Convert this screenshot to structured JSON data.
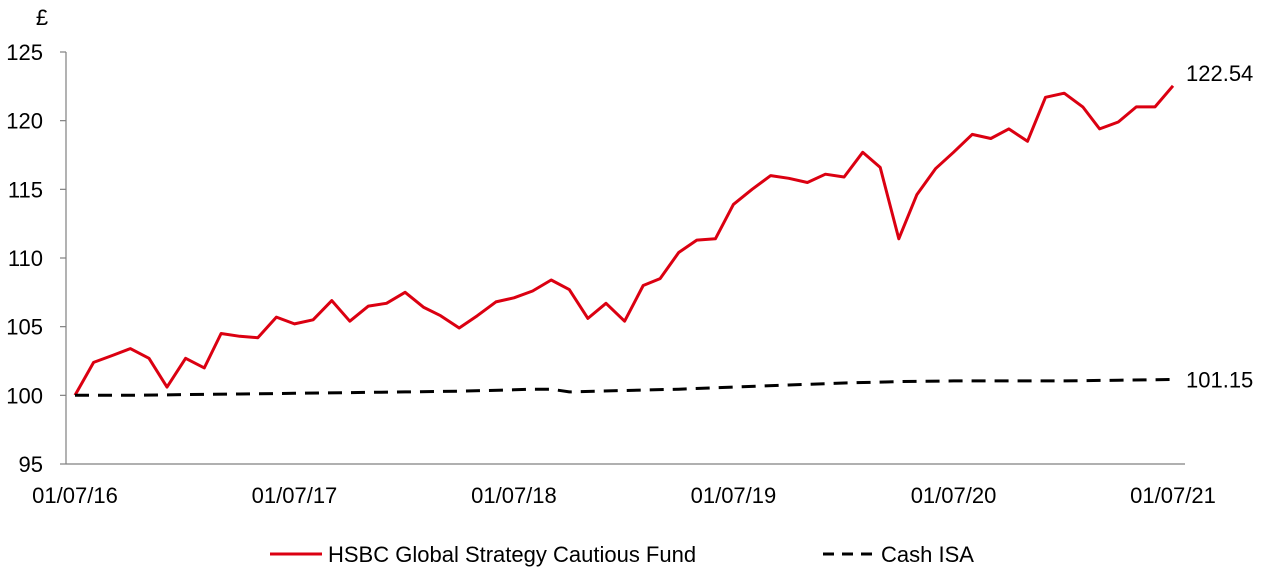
{
  "chart_data": {
    "type": "line",
    "title": "",
    "xlabel": "",
    "ylabel": "£",
    "ylim": [
      95,
      125
    ],
    "yticks": [
      95,
      100,
      105,
      110,
      115,
      120,
      125
    ],
    "xlim": [
      "01/07/16",
      "01/07/21"
    ],
    "xticks": [
      "01/07/16",
      "01/07/17",
      "01/07/18",
      "01/07/19",
      "01/07/20",
      "01/07/21"
    ],
    "grid": false,
    "legend_position": "bottom",
    "series": [
      {
        "name": "HSBC Global Strategy Cautious Fund",
        "color": "#db0011",
        "style": "solid",
        "end_label": "122.54",
        "x": [
          "01/07/16",
          "01/08/16",
          "01/09/16",
          "01/10/16",
          "01/11/16",
          "01/12/16",
          "01/01/17",
          "01/02/17",
          "01/03/17",
          "01/04/17",
          "01/05/17",
          "01/06/17",
          "01/07/17",
          "01/08/17",
          "01/09/17",
          "01/10/17",
          "01/11/17",
          "01/12/17",
          "01/01/18",
          "01/02/18",
          "01/03/18",
          "01/04/18",
          "01/05/18",
          "01/06/18",
          "01/07/18",
          "01/08/18",
          "01/09/18",
          "01/10/18",
          "01/11/18",
          "01/12/18",
          "01/01/19",
          "01/02/19",
          "01/03/19",
          "01/04/19",
          "01/05/19",
          "01/06/19",
          "01/07/19",
          "01/08/19",
          "01/09/19",
          "01/10/19",
          "01/11/19",
          "01/12/19",
          "01/01/20",
          "01/02/20",
          "01/03/20",
          "01/04/20",
          "01/05/20",
          "01/06/20",
          "01/07/20",
          "01/08/20",
          "01/09/20",
          "01/10/20",
          "01/11/20",
          "01/12/20",
          "01/01/21",
          "01/02/21",
          "01/03/21",
          "01/04/21",
          "01/05/21",
          "01/06/21",
          "01/07/21"
        ],
        "values": [
          100.0,
          102.4,
          102.9,
          103.4,
          102.7,
          100.6,
          102.7,
          102.0,
          104.5,
          104.3,
          104.2,
          105.7,
          105.2,
          105.5,
          106.9,
          105.4,
          106.5,
          106.7,
          107.5,
          106.4,
          105.8,
          104.9,
          105.8,
          106.8,
          107.1,
          107.6,
          108.4,
          107.7,
          105.6,
          106.7,
          105.4,
          108.0,
          108.5,
          110.4,
          111.3,
          111.4,
          113.9,
          115.0,
          116.0,
          115.8,
          115.5,
          116.1,
          115.9,
          117.7,
          116.6,
          111.4,
          114.6,
          116.5,
          117.7,
          119.0,
          118.7,
          119.4,
          118.5,
          121.7,
          122.0,
          121.0,
          119.4,
          119.9,
          121.0,
          121.0,
          122.54
        ]
      },
      {
        "name": "Cash ISA",
        "color": "#000000",
        "style": "dashed",
        "end_label": "101.15",
        "x": [
          "01/07/16",
          "01/10/16",
          "01/01/17",
          "01/04/17",
          "01/07/17",
          "01/10/17",
          "01/01/18",
          "01/04/18",
          "01/07/18",
          "01/08/18",
          "01/09/18",
          "01/10/18",
          "01/01/19",
          "01/04/19",
          "01/07/19",
          "01/10/19",
          "01/01/20",
          "01/04/20",
          "01/07/20",
          "01/10/20",
          "01/01/21",
          "01/04/21",
          "01/07/21"
        ],
        "values": [
          100.0,
          100.0,
          100.05,
          100.1,
          100.15,
          100.2,
          100.25,
          100.3,
          100.4,
          100.45,
          100.45,
          100.25,
          100.35,
          100.45,
          100.6,
          100.75,
          100.9,
          101.0,
          101.05,
          101.05,
          101.05,
          101.1,
          101.15
        ]
      }
    ]
  }
}
